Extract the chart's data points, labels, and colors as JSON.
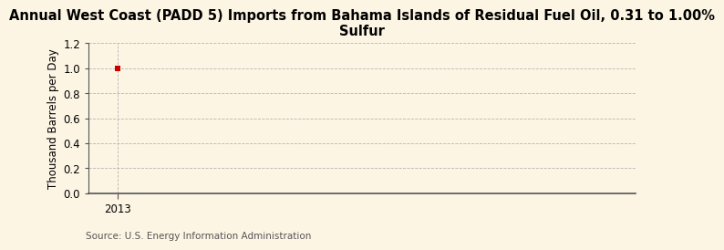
{
  "title": "Annual West Coast (PADD 5) Imports from Bahama Islands of Residual Fuel Oil, 0.31 to 1.00%\nSulfur",
  "ylabel": "Thousand Barrels per Day",
  "source_text": "Source: U.S. Energy Information Administration",
  "x_data": [
    2013
  ],
  "y_data": [
    1.0
  ],
  "point_color": "#cc0000",
  "xlim_left": 2012.4,
  "xlim_right": 2023.6,
  "ylim": [
    0.0,
    1.2
  ],
  "yticks": [
    0.0,
    0.2,
    0.4,
    0.6,
    0.8,
    1.0,
    1.2
  ],
  "xticks": [
    2013
  ],
  "background_color": "#fdf5e4",
  "grid_color": "#b0b0b0",
  "spine_color": "#555555",
  "title_fontsize": 10.5,
  "label_fontsize": 8.5,
  "tick_fontsize": 8.5,
  "source_fontsize": 7.5
}
